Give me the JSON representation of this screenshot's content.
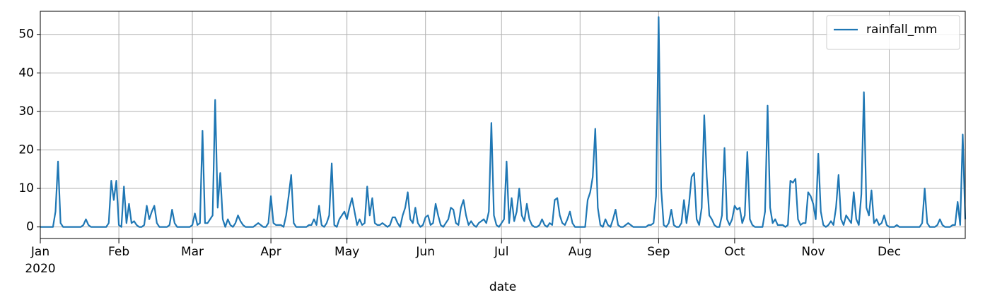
{
  "chart_data": {
    "type": "line",
    "xlabel": "date",
    "x_year_label": "2020",
    "xlim": [
      0,
      365
    ],
    "xticks": [
      {
        "value": 0,
        "label": "Jan"
      },
      {
        "value": 31,
        "label": "Feb"
      },
      {
        "value": 60,
        "label": "Mar"
      },
      {
        "value": 91,
        "label": "Apr"
      },
      {
        "value": 121,
        "label": "May"
      },
      {
        "value": 152,
        "label": "Jun"
      },
      {
        "value": 182,
        "label": "Jul"
      },
      {
        "value": 213,
        "label": "Aug"
      },
      {
        "value": 244,
        "label": "Sep"
      },
      {
        "value": 274,
        "label": "Oct"
      },
      {
        "value": 305,
        "label": "Nov"
      },
      {
        "value": 335,
        "label": "Dec"
      }
    ],
    "ylim": [
      -3,
      56
    ],
    "yticks": [
      0,
      10,
      20,
      30,
      40,
      50
    ],
    "grid": true,
    "legend": "upper right",
    "series": [
      {
        "name": "rainfall_mm",
        "color": "#1f77b4",
        "values": [
          0,
          0,
          0,
          0,
          0,
          0,
          4,
          17,
          1,
          0,
          0,
          0,
          0,
          0,
          0,
          0,
          0,
          0.5,
          2,
          0.5,
          0,
          0,
          0,
          0,
          0,
          0,
          0,
          1,
          12,
          7,
          12,
          0.5,
          0,
          10.5,
          1,
          6,
          1,
          1.5,
          0.5,
          0,
          0,
          0.5,
          5.5,
          2,
          4,
          5.5,
          1,
          0,
          0,
          0,
          0,
          0.5,
          4.5,
          1,
          0,
          0,
          0,
          0,
          0,
          0,
          0.5,
          3.5,
          0.5,
          1,
          25,
          1,
          1,
          2,
          3,
          33,
          5,
          14,
          2,
          0,
          2,
          0.5,
          0,
          1,
          3,
          1.5,
          0.5,
          0,
          0,
          0,
          0,
          0.5,
          1,
          0.5,
          0,
          0,
          1,
          8,
          1,
          0.5,
          0.5,
          0.5,
          0,
          3,
          8,
          13.5,
          1,
          0,
          0,
          0,
          0,
          0,
          0.5,
          0.5,
          2,
          0.5,
          5.5,
          0.5,
          0,
          1,
          3,
          16.5,
          0.5,
          0,
          2,
          3,
          4,
          2,
          5,
          7.5,
          4,
          0.5,
          2,
          0.5,
          1,
          10.5,
          3,
          7.5,
          1,
          0.5,
          0.5,
          1,
          0.5,
          0,
          0.5,
          2.5,
          2.5,
          1,
          0,
          3,
          5,
          9,
          2,
          1,
          5,
          1,
          0,
          0.5,
          2.5,
          3,
          0.5,
          1,
          6,
          3,
          0.5,
          0,
          1,
          2,
          5,
          4.5,
          1,
          0.5,
          5,
          7,
          3,
          0.5,
          1.5,
          0.5,
          0,
          1,
          1.5,
          2,
          1,
          4,
          27,
          3,
          0.5,
          0,
          1,
          2,
          17,
          1,
          7.5,
          1.5,
          4,
          10,
          3,
          1.5,
          6,
          2,
          0.5,
          0,
          0,
          0.5,
          2,
          0.5,
          0,
          1,
          0.5,
          7,
          7.5,
          3,
          1,
          0.5,
          2,
          4,
          1,
          0,
          0,
          0,
          0,
          0,
          7,
          9,
          13,
          25.5,
          5,
          0.5,
          0,
          2,
          0.5,
          0,
          2,
          4.5,
          0.5,
          0,
          0,
          0.5,
          1,
          0.5,
          0,
          0,
          0,
          0,
          0,
          0,
          0.5,
          0.5,
          1,
          8,
          54.5,
          10,
          0.5,
          0,
          1,
          4.5,
          0.5,
          0,
          0,
          1,
          7,
          1,
          6,
          13,
          14,
          2,
          0.5,
          5,
          29,
          13,
          3,
          2,
          0.5,
          0,
          0,
          3,
          20.5,
          2,
          0.5,
          2,
          5.5,
          4.5,
          5,
          1,
          3,
          19.5,
          2,
          0.5,
          0,
          0,
          0,
          0,
          4,
          31.5,
          5,
          1,
          2,
          0.5,
          0.5,
          0.5,
          0,
          0.5,
          12,
          11.5,
          12.5,
          2,
          0.5,
          1,
          1,
          9,
          8,
          6,
          2,
          19,
          4,
          0.5,
          0,
          0.5,
          1.5,
          0.5,
          5,
          13.5,
          2,
          0.5,
          3,
          2,
          1,
          9,
          2,
          0.5,
          8.5,
          35,
          5,
          3,
          9.5,
          1,
          2,
          0.5,
          1,
          3,
          0.5,
          0,
          0,
          0,
          0.5,
          0,
          0,
          0,
          0,
          0,
          0,
          0,
          0,
          0,
          1,
          10,
          1,
          0,
          0,
          0,
          0.5,
          2,
          0.5,
          0,
          0,
          0,
          0.5,
          0.5,
          6.5,
          0.5,
          24,
          2
        ]
      }
    ]
  }
}
